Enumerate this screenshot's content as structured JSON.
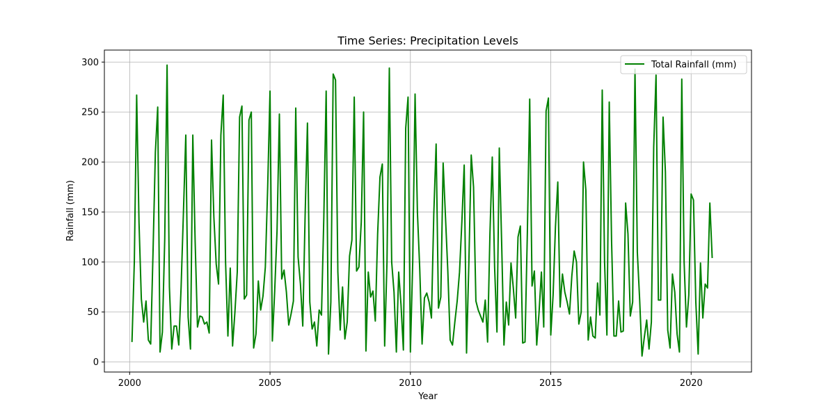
{
  "chart_data": {
    "type": "line",
    "title": "Time Series: Precipitation Levels",
    "xlabel": "Year",
    "ylabel": "Rainfall (mm)",
    "xlim": [
      1999.1,
      2022.15
    ],
    "ylim": [
      -10,
      312
    ],
    "xticks": [
      2000,
      2005,
      2010,
      2015,
      2020
    ],
    "yticks": [
      0,
      50,
      100,
      150,
      200,
      250,
      300
    ],
    "grid": true,
    "legend_position": "top-right",
    "colors": {
      "series": "#008000",
      "grid": "#b0b0b0",
      "axes": "#000000"
    },
    "x_start": "2000-01",
    "x_frequency": "monthly",
    "series": [
      {
        "name": "Total Rainfall (mm)",
        "values": [
          20,
          100,
          267,
          140,
          63,
          40,
          61,
          22,
          18,
          110,
          210,
          255,
          10,
          30,
          123,
          297,
          75,
          13,
          36,
          36,
          17,
          75,
          150,
          227,
          45,
          13,
          227,
          120,
          35,
          46,
          45,
          38,
          40,
          29,
          222,
          145,
          98,
          78,
          227,
          267,
          100,
          26,
          94,
          16,
          50,
          90,
          245,
          256,
          63,
          67,
          242,
          250,
          14,
          28,
          81,
          52,
          66,
          95,
          175,
          271,
          21,
          71,
          131,
          248,
          83,
          92,
          70,
          37,
          48,
          61,
          254,
          105,
          78,
          36,
          146,
          239,
          60,
          33,
          40,
          16,
          52,
          47,
          145,
          271,
          8,
          60,
          288,
          282,
          90,
          32,
          75,
          23,
          40,
          106,
          122,
          265,
          91,
          95,
          140,
          250,
          11,
          90,
          65,
          71,
          41,
          128,
          185,
          198,
          16,
          100,
          294,
          100,
          70,
          10,
          90,
          57,
          12,
          234,
          265,
          10,
          100,
          268,
          150,
          93,
          18,
          64,
          69,
          60,
          44,
          148,
          218,
          54,
          65,
          199,
          145,
          91,
          22,
          17,
          40,
          61,
          90,
          140,
          197,
          9,
          100,
          207,
          175,
          61,
          52,
          46,
          40,
          62,
          20,
          128,
          205,
          95,
          30,
          214,
          120,
          17,
          60,
          37,
          99,
          74,
          44,
          125,
          136,
          19,
          20,
          130,
          263,
          76,
          91,
          17,
          50,
          90,
          35,
          251,
          264,
          27,
          67,
          135,
          180,
          55,
          88,
          70,
          60,
          48,
          86,
          111,
          100,
          38,
          50,
          200,
          172,
          22,
          45,
          26,
          24,
          79,
          47,
          272,
          100,
          27,
          260,
          120,
          26,
          26,
          61,
          30,
          31,
          159,
          128,
          46,
          60,
          293,
          110,
          62,
          6,
          25,
          42,
          13,
          40,
          215,
          287,
          62,
          62,
          245,
          190,
          32,
          14,
          88,
          70,
          28,
          10,
          283,
          100,
          35,
          67,
          168,
          162,
          60,
          8,
          99,
          44,
          78,
          74,
          159,
          104
        ]
      }
    ]
  }
}
